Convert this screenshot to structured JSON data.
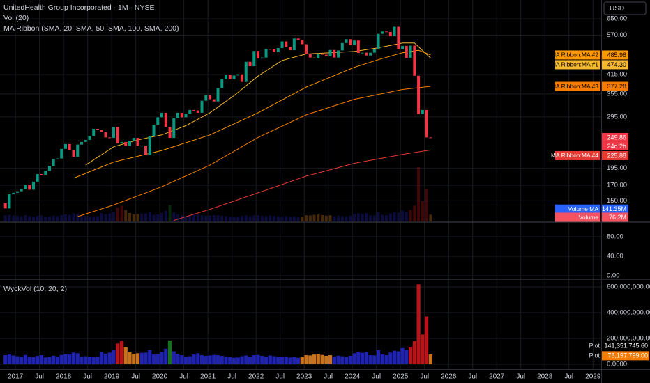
{
  "chart_data": [
    {
      "type": "candlestick",
      "title": "UnitedHealth Group Incorporated · 1M · NYSE",
      "currency": "USD",
      "indicators": [
        "Vol (20)",
        "MA Ribbon (SMA, 20, SMA, 50, SMA, 100, SMA, 200)"
      ],
      "log_scale": true,
      "grid": true,
      "up_color": "#089981",
      "down_color": "#f23645",
      "ylim": [
        127,
        757
      ],
      "yticks": [
        {
          "value": 150,
          "label": "150.00"
        },
        {
          "value": 170,
          "label": "170.00"
        },
        {
          "value": 195,
          "label": "195.00"
        },
        {
          "value": 295,
          "label": "295.00"
        },
        {
          "value": 355,
          "label": "355.00"
        },
        {
          "value": 415,
          "label": "415.00"
        },
        {
          "value": 570,
          "label": "570.00"
        },
        {
          "value": 650,
          "label": "650.00"
        }
      ],
      "x": [
        "2016-10",
        "2016-11",
        "2016-12",
        "2017-01",
        "2017-02",
        "2017-03",
        "2017-04",
        "2017-05",
        "2017-06",
        "2017-07",
        "2017-08",
        "2017-09",
        "2017-10",
        "2017-11",
        "2017-12",
        "2018-01",
        "2018-02",
        "2018-03",
        "2018-04",
        "2018-05",
        "2018-06",
        "2018-07",
        "2018-08",
        "2018-09",
        "2018-10",
        "2018-11",
        "2018-12",
        "2019-01",
        "2019-02",
        "2019-03",
        "2019-04",
        "2019-05",
        "2019-06",
        "2019-07",
        "2019-08",
        "2019-09",
        "2019-10",
        "2019-11",
        "2019-12",
        "2020-01",
        "2020-02",
        "2020-03",
        "2020-04",
        "2020-05",
        "2020-06",
        "2020-07",
        "2020-08",
        "2020-09",
        "2020-10",
        "2020-11",
        "2020-12",
        "2021-01",
        "2021-02",
        "2021-03",
        "2021-04",
        "2021-05",
        "2021-06",
        "2021-07",
        "2021-08",
        "2021-09",
        "2021-10",
        "2021-11",
        "2021-12",
        "2022-01",
        "2022-02",
        "2022-03",
        "2022-04",
        "2022-05",
        "2022-06",
        "2022-07",
        "2022-08",
        "2022-09",
        "2022-10",
        "2022-11",
        "2022-12",
        "2023-01",
        "2023-02",
        "2023-03",
        "2023-04",
        "2023-05",
        "2023-06",
        "2023-07",
        "2023-08",
        "2023-09",
        "2023-10",
        "2023-11",
        "2023-12",
        "2024-01",
        "2024-02",
        "2024-03",
        "2024-04",
        "2024-05",
        "2024-06",
        "2024-07",
        "2024-08",
        "2024-09",
        "2024-10",
        "2024-11",
        "2024-12",
        "2025-01",
        "2025-02",
        "2025-03",
        "2025-04",
        "2025-05",
        "2025-06",
        "2025-07",
        "2025-08"
      ],
      "open": [
        147,
        141,
        158,
        160,
        162,
        165,
        170,
        164,
        175,
        186,
        185,
        191,
        199,
        210,
        211,
        228,
        237,
        226,
        214,
        236,
        241,
        245,
        253,
        268,
        266,
        261,
        250,
        249,
        272,
        238,
        241,
        233,
        243,
        249,
        234,
        234,
        217,
        252,
        277,
        294,
        305,
        272,
        249,
        292,
        305,
        294,
        303,
        312,
        311,
        305,
        336,
        351,
        340,
        334,
        372,
        399,
        413,
        400,
        412,
        416,
        391,
        460,
        444,
        502,
        472,
        476,
        510,
        509,
        497,
        514,
        542,
        519,
        505,
        555,
        548,
        530,
        489,
        476,
        473,
        492,
        487,
        481,
        506,
        476,
        504,
        535,
        552,
        526,
        546,
        494,
        495,
        484,
        495,
        509,
        576,
        587,
        585,
        565,
        610,
        509,
        523,
        475,
        524,
        411,
        302,
        312,
        250
      ],
      "close": [
        141,
        158,
        160,
        162,
        165,
        170,
        164,
        175,
        186,
        185,
        191,
        199,
        210,
        211,
        228,
        237,
        226,
        214,
        236,
        241,
        245,
        253,
        268,
        266,
        261,
        250,
        249,
        272,
        238,
        241,
        233,
        243,
        249,
        234,
        234,
        217,
        252,
        277,
        294,
        305,
        272,
        249,
        292,
        305,
        294,
        303,
        312,
        311,
        305,
        336,
        351,
        340,
        334,
        372,
        399,
        413,
        400,
        412,
        416,
        391,
        460,
        444,
        502,
        472,
        476,
        510,
        509,
        497,
        514,
        542,
        519,
        505,
        555,
        548,
        530,
        489,
        476,
        473,
        492,
        487,
        481,
        506,
        476,
        504,
        535,
        552,
        526,
        546,
        494,
        495,
        484,
        495,
        509,
        576,
        587,
        585,
        565,
        610,
        509,
        523,
        475,
        524,
        411,
        302,
        312,
        250,
        249.86
      ],
      "lines": [
        {
          "name": "MA Ribbon:MA #1",
          "color": "#f5b82e",
          "x": [
            "2018-06",
            "2019-01",
            "2019-07",
            "2020-01",
            "2020-07",
            "2021-01",
            "2021-07",
            "2022-01",
            "2022-07",
            "2023-01",
            "2023-07",
            "2024-01",
            "2024-07",
            "2025-01",
            "2025-04",
            "2025-08"
          ],
          "values": [
            200,
            232,
            245,
            255,
            275,
            305,
            350,
            410,
            465,
            490,
            495,
            500,
            515,
            535,
            535,
            474.3
          ]
        },
        {
          "name": "MA Ribbon:MA #2",
          "color": "#ff9800",
          "x": [
            "2018-03",
            "2019-01",
            "2020-01",
            "2021-01",
            "2022-01",
            "2023-01",
            "2024-01",
            "2024-07",
            "2025-01",
            "2025-05",
            "2025-08"
          ],
          "values": [
            180,
            205,
            225,
            255,
            305,
            375,
            440,
            468,
            495,
            505,
            485.98
          ]
        },
        {
          "name": "MA Ribbon:MA #3",
          "color": "#f57c00",
          "x": [
            "2018-04",
            "2019-01",
            "2020-01",
            "2021-01",
            "2022-01",
            "2023-01",
            "2024-01",
            "2025-01",
            "2025-08"
          ],
          "values": [
            132,
            145,
            168,
            200,
            250,
            300,
            340,
            368,
            377.28
          ]
        },
        {
          "name": "MA Ribbon:MA #4",
          "color": "#e53935",
          "x": [
            "2020-04",
            "2021-01",
            "2022-01",
            "2023-01",
            "2024-01",
            "2025-01",
            "2025-08"
          ],
          "values": [
            128,
            140,
            160,
            183,
            203,
            218,
            225.88
          ]
        }
      ],
      "price_labels": [
        {
          "name": "MA Ribbon:MA #2",
          "value": 485.98,
          "label": "485.98",
          "color": "#ff9800",
          "text_color": "#000000"
        },
        {
          "name": "MA Ribbon:MA #1",
          "value": 474.3,
          "label": "474.30",
          "color": "#f5b82e",
          "text_color": "#000000"
        },
        {
          "name": "MA Ribbon:MA #3",
          "value": 377.28,
          "label": "377.28",
          "color": "#f57c00",
          "text_color": "#000000"
        },
        {
          "name": "MA Ribbon:MA #4",
          "value": 225.88,
          "label": "225.88",
          "color": "#e53935",
          "text_color": "#ffffff"
        }
      ],
      "last_price": {
        "value": 249.86,
        "label": "249.86",
        "countdown": "24d 2h",
        "color": "#f23645"
      },
      "volume_labels": [
        {
          "name": "Volume MA",
          "value": 141350000,
          "label": "141.35M",
          "color": "#2962ff"
        },
        {
          "name": "Volume",
          "value": 76200000,
          "label": "76.2M",
          "color": "#f7525f"
        }
      ]
    },
    {
      "type": "pane",
      "grid": true,
      "ylim": [
        -5.7,
        108.6
      ],
      "yticks": [
        {
          "value": 0,
          "label": "0.00"
        },
        {
          "value": 40,
          "label": "40.00"
        },
        {
          "value": 80,
          "label": "80.00"
        }
      ]
    },
    {
      "type": "bar",
      "title": "WyckVol (10, 20, 2)",
      "grid": true,
      "ylim": [
        -37800000,
        654000000
      ],
      "yticks": [
        {
          "value": 0,
          "label": "0.0000"
        },
        {
          "value": 200000000,
          "label": "200,000,000.00"
        },
        {
          "value": 400000000,
          "label": "400,000,000.00"
        },
        {
          "value": 600000000,
          "label": "600,000,000.00"
        }
      ],
      "values": [
        70000000,
        75000000,
        68000000,
        62000000,
        58000000,
        72000000,
        60000000,
        55000000,
        64000000,
        70000000,
        52000000,
        58000000,
        66000000,
        60000000,
        72000000,
        80000000,
        75000000,
        90000000,
        85000000,
        60000000,
        62000000,
        58000000,
        55000000,
        60000000,
        95000000,
        82000000,
        90000000,
        110000000,
        160000000,
        178000000,
        130000000,
        95000000,
        80000000,
        85000000,
        88000000,
        90000000,
        110000000,
        75000000,
        80000000,
        95000000,
        120000000,
        184000000,
        100000000,
        80000000,
        70000000,
        60000000,
        62000000,
        75000000,
        85000000,
        70000000,
        65000000,
        68000000,
        72000000,
        70000000,
        65000000,
        60000000,
        55000000,
        50000000,
        52000000,
        62000000,
        68000000,
        60000000,
        70000000,
        72000000,
        65000000,
        60000000,
        68000000,
        62000000,
        58000000,
        55000000,
        60000000,
        52000000,
        58000000,
        50000000,
        55000000,
        70000000,
        68000000,
        75000000,
        80000000,
        72000000,
        65000000,
        70000000,
        60000000,
        66000000,
        62000000,
        58000000,
        65000000,
        85000000,
        92000000,
        88000000,
        95000000,
        70000000,
        68000000,
        110000000,
        75000000,
        70000000,
        90000000,
        105000000,
        100000000,
        125000000,
        110000000,
        130000000,
        180000000,
        620000000,
        230000000,
        370000000,
        76197799
      ],
      "colors": [
        "#1f23b0",
        "#1f23b0",
        "#1f23b0",
        "#1f23b0",
        "#1f23b0",
        "#1f23b0",
        "#1f23b0",
        "#1f23b0",
        "#1f23b0",
        "#1f23b0",
        "#1f23b0",
        "#1f23b0",
        "#1f23b0",
        "#1f23b0",
        "#1f23b0",
        "#1f23b0",
        "#1f23b0",
        "#1f23b0",
        "#1f23b0",
        "#1f23b0",
        "#1f23b0",
        "#1f23b0",
        "#1f23b0",
        "#1f23b0",
        "#1f23b0",
        "#1f23b0",
        "#1f23b0",
        "#1f23b0",
        "#b8151b",
        "#b8151b",
        "#c8721e",
        "#c8721e",
        "#c8721e",
        "#c8721e",
        "#1f23b0",
        "#1f23b0",
        "#1f23b0",
        "#1f23b0",
        "#1f23b0",
        "#1f23b0",
        "#1f23b0",
        "#16701e",
        "#1f23b0",
        "#1f23b0",
        "#1f23b0",
        "#1f23b0",
        "#1f23b0",
        "#1f23b0",
        "#1f23b0",
        "#1f23b0",
        "#1f23b0",
        "#1f23b0",
        "#1f23b0",
        "#1f23b0",
        "#1f23b0",
        "#1f23b0",
        "#1f23b0",
        "#1f23b0",
        "#1f23b0",
        "#1f23b0",
        "#1f23b0",
        "#1f23b0",
        "#1f23b0",
        "#1f23b0",
        "#1f23b0",
        "#1f23b0",
        "#1f23b0",
        "#1f23b0",
        "#1f23b0",
        "#1f23b0",
        "#1f23b0",
        "#1f23b0",
        "#1f23b0",
        "#1f23b0",
        "#c8721e",
        "#c8721e",
        "#c8721e",
        "#c8721e",
        "#c8721e",
        "#c8721e",
        "#c8721e",
        "#c8721e",
        "#1f23b0",
        "#1f23b0",
        "#1f23b0",
        "#1f23b0",
        "#1f23b0",
        "#1f23b0",
        "#1f23b0",
        "#1f23b0",
        "#1f23b0",
        "#1f23b0",
        "#1f23b0",
        "#1f23b0",
        "#1f23b0",
        "#1f23b0",
        "#1f23b0",
        "#1f23b0",
        "#1f23b0",
        "#1f23b0",
        "#1f23b0",
        "#b8151b",
        "#b8151b",
        "#b8151b",
        "#b8151b",
        "#b8151b",
        "#c8721e"
      ],
      "plot_labels": [
        {
          "name": "Plot",
          "value": 141351745.6,
          "label": "141,351,745.60",
          "color": "#000000",
          "text_color": "#ffffff"
        },
        {
          "name": "Plot",
          "value": 76197799,
          "label": "76,197,799.00",
          "color": "#f57c00",
          "text_color": "#ffffff"
        }
      ]
    }
  ],
  "time_axis": {
    "grid": true,
    "xlim": [
      2016.68,
      2029.17
    ],
    "xticks": [
      2017,
      {
        "value": 2017.5,
        "label": "Jul"
      },
      2018,
      {
        "value": 2018.5,
        "label": "Jul"
      },
      2019,
      {
        "value": 2019.5,
        "label": "Jul"
      },
      2020,
      {
        "value": 2020.5,
        "label": "Jul"
      },
      2021,
      {
        "value": 2021.5,
        "label": "Jul"
      },
      2022,
      {
        "value": 2022.5,
        "label": "Jul"
      },
      2023,
      {
        "value": 2023.5,
        "label": "Jul"
      },
      2024,
      {
        "value": 2024.5,
        "label": "Jul"
      },
      2025,
      {
        "value": 2025.5,
        "label": "Jul"
      },
      2026,
      {
        "value": 2026.5,
        "label": "Jul"
      },
      2027,
      {
        "value": 2027.5,
        "label": "Jul"
      },
      2028,
      {
        "value": 2028.5,
        "label": "Jul"
      },
      2029
    ]
  }
}
